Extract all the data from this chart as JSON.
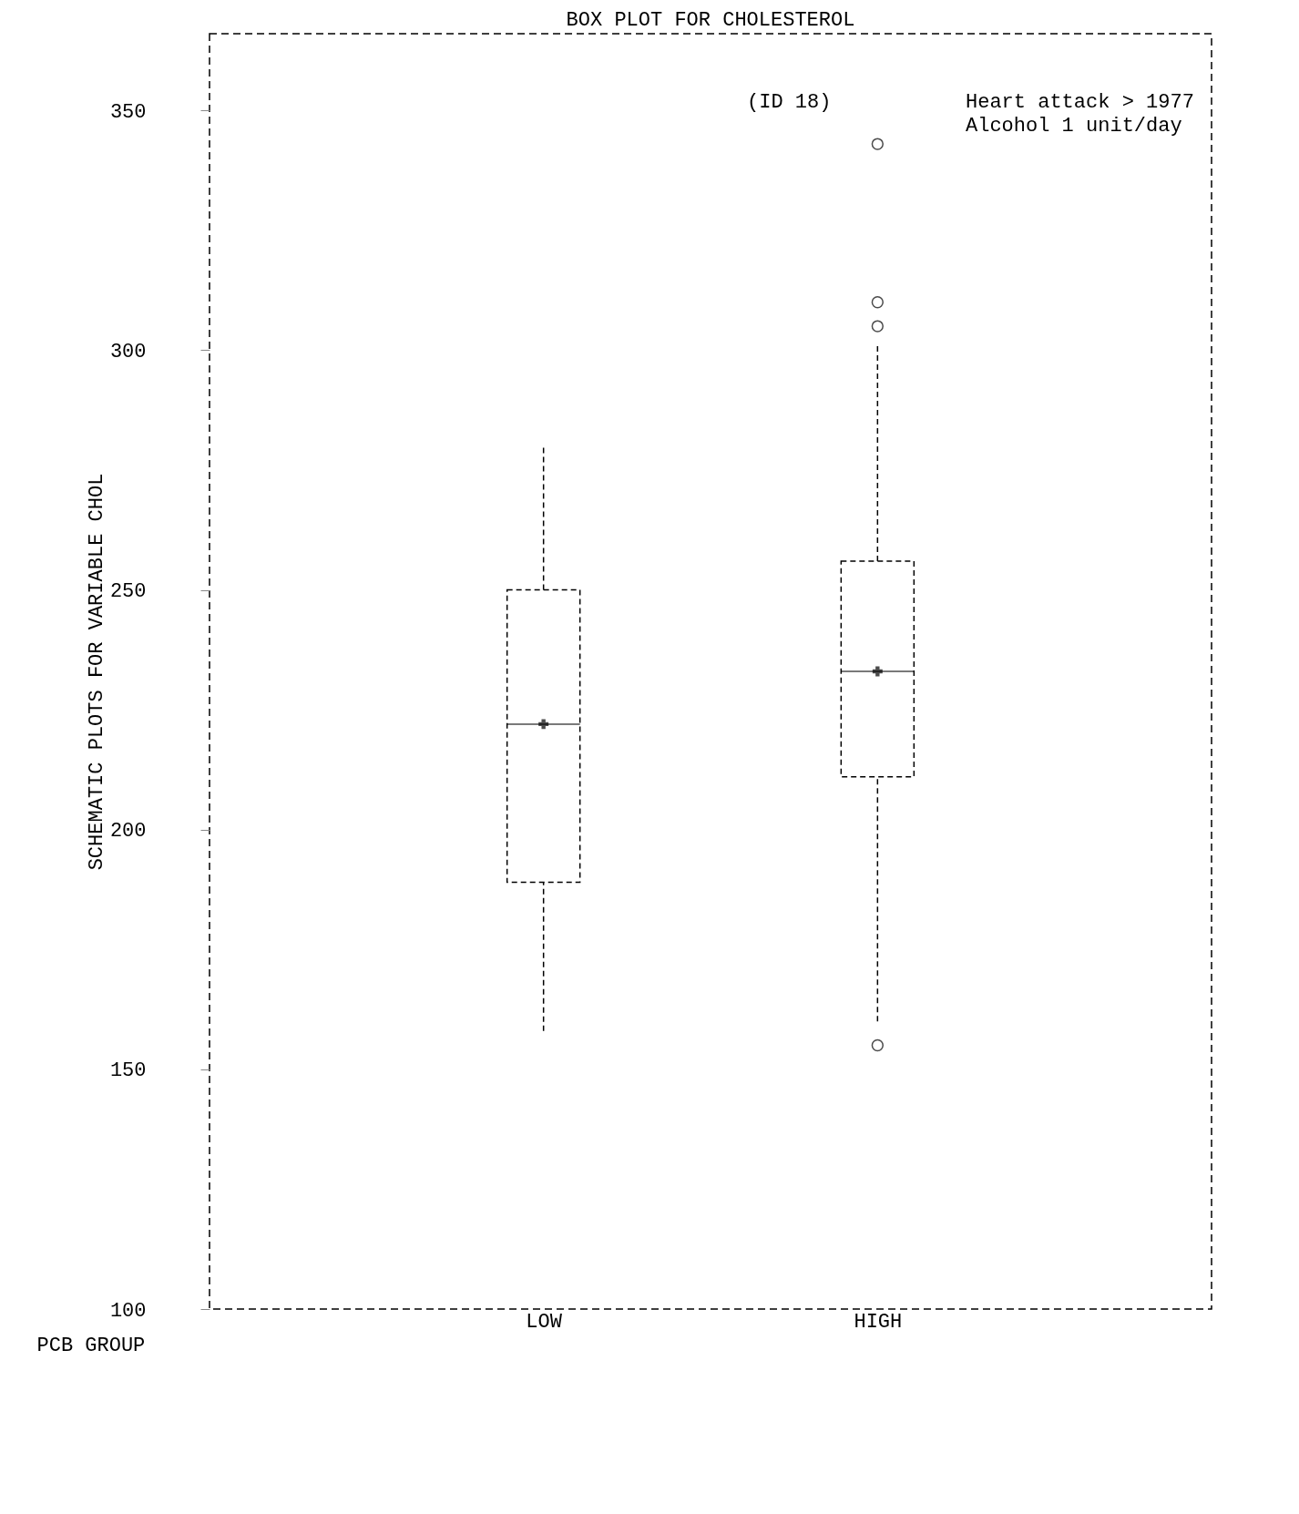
{
  "chart_data": {
    "type": "box",
    "title": "BOX PLOT FOR CHOLESTEROL",
    "xlabel": "PCB GROUP",
    "ylabel": "SCHEMATIC PLOTS FOR VARIABLE CHOL",
    "categories": [
      "LOW",
      "HIGH"
    ],
    "boxes": [
      {
        "low": 158,
        "q1": 189,
        "median": 222,
        "q3": 250,
        "high": 280,
        "mean": 222
      },
      {
        "low": 160,
        "q1": 211,
        "median": 233,
        "q3": 256,
        "high": 301,
        "mean": 233,
        "outliers": [
          155,
          305,
          310,
          343
        ]
      }
    ],
    "ylim": [
      100,
      366
    ],
    "yticks": [
      100,
      150,
      200,
      250,
      300,
      350
    ],
    "grid": false,
    "annotations": [
      "(ID 18)",
      "Heart attack > 1977",
      "Alcohol 1 unit/day"
    ]
  }
}
